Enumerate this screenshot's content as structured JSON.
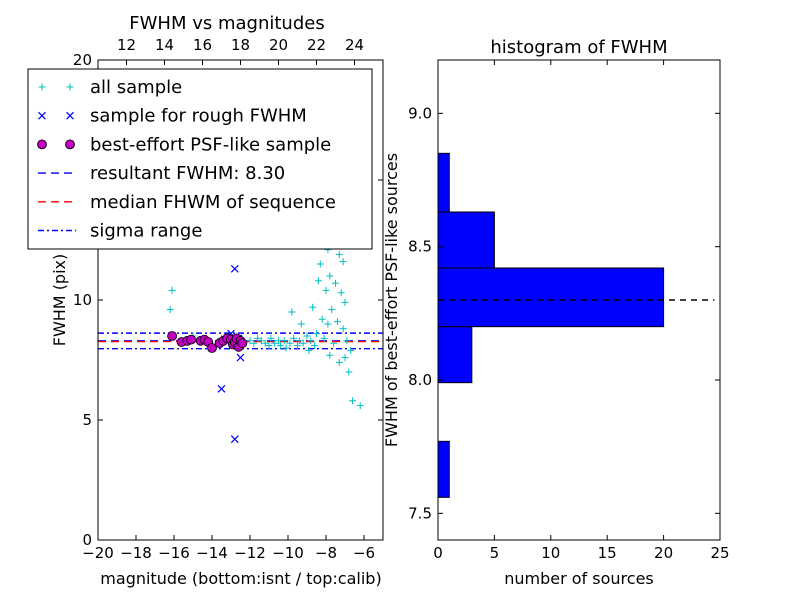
{
  "chart_data": [
    {
      "type": "scatter",
      "title": "FWHM vs magnitudes",
      "xlabel": "magnitude (bottom:isnt / top:calib)",
      "ylabel": "FWHM (pix)",
      "xlim": [
        -20,
        -5
      ],
      "ylim": [
        0,
        20
      ],
      "xticks": [
        -20,
        -18,
        -16,
        -14,
        -12,
        -10,
        -8,
        -6
      ],
      "xtick_labels": [
        "−20",
        "−18",
        "−16",
        "−14",
        "−12",
        "−10",
        "−8",
        "−6"
      ],
      "yticks": [
        0,
        5,
        10,
        15,
        20
      ],
      "ytick_labels": [
        "0",
        "5",
        "10",
        "15",
        "20"
      ],
      "top_axis": {
        "xlim": [
          10.5,
          25.5
        ],
        "ticks": [
          12,
          14,
          16,
          18,
          20,
          22,
          24
        ],
        "tick_labels": [
          "12",
          "14",
          "16",
          "18",
          "20",
          "22",
          "24"
        ]
      },
      "legend": {
        "placement": "upper-left",
        "entries": [
          {
            "label": "all sample",
            "marker": "+",
            "color": "#00bfbf"
          },
          {
            "label": "sample for rough FWHM",
            "marker": "x",
            "color": "#0000ff"
          },
          {
            "label": "best-effort PSF-like sample",
            "marker": "o",
            "color": "#bf00bf"
          },
          {
            "label": "resultant FWHM: 8.30",
            "linestyle": "dashed",
            "color": "#0000ff"
          },
          {
            "label": "median FHWM of sequence",
            "linestyle": "dashed",
            "color": "#ff0000"
          },
          {
            "label": "sigma range",
            "linestyle": "dashdot",
            "color": "#0000ff"
          }
        ]
      },
      "hlines": [
        {
          "y": 8.3,
          "color": "#0000ff",
          "style": "dashed"
        },
        {
          "y": 8.27,
          "color": "#ff0000",
          "style": "dashed"
        },
        {
          "y": 8.62,
          "color": "#0000ff",
          "style": "dashdot"
        },
        {
          "y": 7.97,
          "color": "#0000ff",
          "style": "dashdot"
        }
      ],
      "series": [
        {
          "marker": "+",
          "color": "#00bfbf",
          "points": [
            [
              -16.1,
              10.4
            ],
            [
              -16.2,
              9.6
            ],
            [
              -15.0,
              8.5
            ],
            [
              -13.5,
              8.4
            ],
            [
              -12.9,
              8.3
            ],
            [
              -12.5,
              8.4
            ],
            [
              -12.0,
              8.3
            ],
            [
              -11.8,
              8.2
            ],
            [
              -11.6,
              8.4
            ],
            [
              -11.4,
              8.3
            ],
            [
              -11.2,
              8.2
            ],
            [
              -11.0,
              8.1
            ],
            [
              -10.9,
              8.4
            ],
            [
              -10.7,
              8.2
            ],
            [
              -10.5,
              8.3
            ],
            [
              -10.4,
              8.1
            ],
            [
              -10.2,
              8.3
            ],
            [
              -10.1,
              8.0
            ],
            [
              -9.9,
              8.2
            ],
            [
              -9.8,
              9.5
            ],
            [
              -9.7,
              8.4
            ],
            [
              -9.5,
              8.1
            ],
            [
              -9.4,
              8.3
            ],
            [
              -9.3,
              9.0
            ],
            [
              -9.2,
              8.2
            ],
            [
              -9.0,
              8.5
            ],
            [
              -8.9,
              7.9
            ],
            [
              -8.8,
              8.3
            ],
            [
              -8.7,
              9.7
            ],
            [
              -8.6,
              8.1
            ],
            [
              -8.5,
              8.6
            ],
            [
              -8.4,
              10.8
            ],
            [
              -8.3,
              11.5
            ],
            [
              -8.2,
              9.2
            ],
            [
              -8.2,
              12.3
            ],
            [
              -8.1,
              8.4
            ],
            [
              -8.0,
              13.0
            ],
            [
              -8.0,
              10.4
            ],
            [
              -7.9,
              9.0
            ],
            [
              -7.9,
              12.1
            ],
            [
              -7.8,
              7.7
            ],
            [
              -7.8,
              11.0
            ],
            [
              -7.7,
              13.6
            ],
            [
              -7.7,
              9.6
            ],
            [
              -7.6,
              12.5
            ],
            [
              -7.6,
              8.2
            ],
            [
              -7.5,
              10.7
            ],
            [
              -7.5,
              14.2
            ],
            [
              -7.4,
              9.1
            ],
            [
              -7.4,
              12.8
            ],
            [
              -7.3,
              11.9
            ],
            [
              -7.3,
              7.4
            ],
            [
              -7.2,
              10.3
            ],
            [
              -7.2,
              13.4
            ],
            [
              -7.1,
              8.8
            ],
            [
              -7.1,
              11.6
            ],
            [
              -7.0,
              9.9
            ],
            [
              -7.0,
              7.6
            ],
            [
              -6.9,
              8.3
            ],
            [
              -6.9,
              12.6
            ],
            [
              -6.8,
              7.0
            ],
            [
              -6.7,
              7.9
            ],
            [
              -6.6,
              5.8
            ],
            [
              -6.2,
              5.6
            ],
            [
              -7.5,
              19.5
            ],
            [
              -6.9,
              19.3
            ],
            [
              -7.3,
              18.4
            ],
            [
              -7.7,
              17.2
            ],
            [
              -7.1,
              16.3
            ],
            [
              -7.9,
              15.5
            ],
            [
              -7.4,
              15.0
            ],
            [
              -8.1,
              14.2
            ],
            [
              -8.4,
              12.7
            ]
          ]
        },
        {
          "marker": "x",
          "color": "#0000ff",
          "points": [
            [
              -12.8,
              11.3
            ],
            [
              -13.5,
              6.3
            ],
            [
              -12.8,
              4.2
            ],
            [
              -12.5,
              7.6
            ],
            [
              -13.0,
              8.6
            ],
            [
              -12.6,
              8.4
            ]
          ]
        },
        {
          "marker": "o",
          "color": "#bf00bf",
          "points": [
            [
              -16.1,
              8.5
            ],
            [
              -15.6,
              8.25
            ],
            [
              -15.3,
              8.3
            ],
            [
              -15.1,
              8.35
            ],
            [
              -14.6,
              8.3
            ],
            [
              -14.4,
              8.35
            ],
            [
              -14.2,
              8.25
            ],
            [
              -14.0,
              8.0
            ],
            [
              -13.6,
              8.2
            ],
            [
              -13.4,
              8.3
            ],
            [
              -13.2,
              8.4
            ],
            [
              -13.0,
              8.35
            ],
            [
              -12.9,
              8.15
            ],
            [
              -12.8,
              8.25
            ],
            [
              -12.7,
              8.4
            ],
            [
              -12.6,
              8.05
            ],
            [
              -12.5,
              8.3
            ],
            [
              -12.4,
              8.2
            ]
          ]
        }
      ]
    },
    {
      "type": "bar",
      "orientation": "horizontal",
      "title": "histogram of FWHM",
      "xlabel": "number of sources",
      "ylabel": "FWHM of best-effort PSF-like sources",
      "xlim": [
        0,
        25
      ],
      "ylim": [
        7.4,
        9.2
      ],
      "xticks": [
        0,
        5,
        10,
        15,
        20,
        25
      ],
      "xtick_labels": [
        "0",
        "5",
        "10",
        "15",
        "20",
        "25"
      ],
      "yticks": [
        7.5,
        8.0,
        8.5,
        9.0
      ],
      "ytick_labels": [
        "7.5",
        "8.0",
        "8.5",
        "9.0"
      ],
      "bar_color": "#0000ff",
      "bins": [
        {
          "lo": 7.56,
          "hi": 7.77,
          "count": 1
        },
        {
          "lo": 7.77,
          "hi": 7.99,
          "count": 0
        },
        {
          "lo": 7.99,
          "hi": 8.2,
          "count": 3
        },
        {
          "lo": 8.2,
          "hi": 8.42,
          "count": 20
        },
        {
          "lo": 8.42,
          "hi": 8.63,
          "count": 5
        },
        {
          "lo": 8.63,
          "hi": 8.85,
          "count": 1
        }
      ],
      "hline": {
        "y": 8.3,
        "xmax": 24.5,
        "color": "#000000",
        "style": "dashed"
      }
    }
  ]
}
